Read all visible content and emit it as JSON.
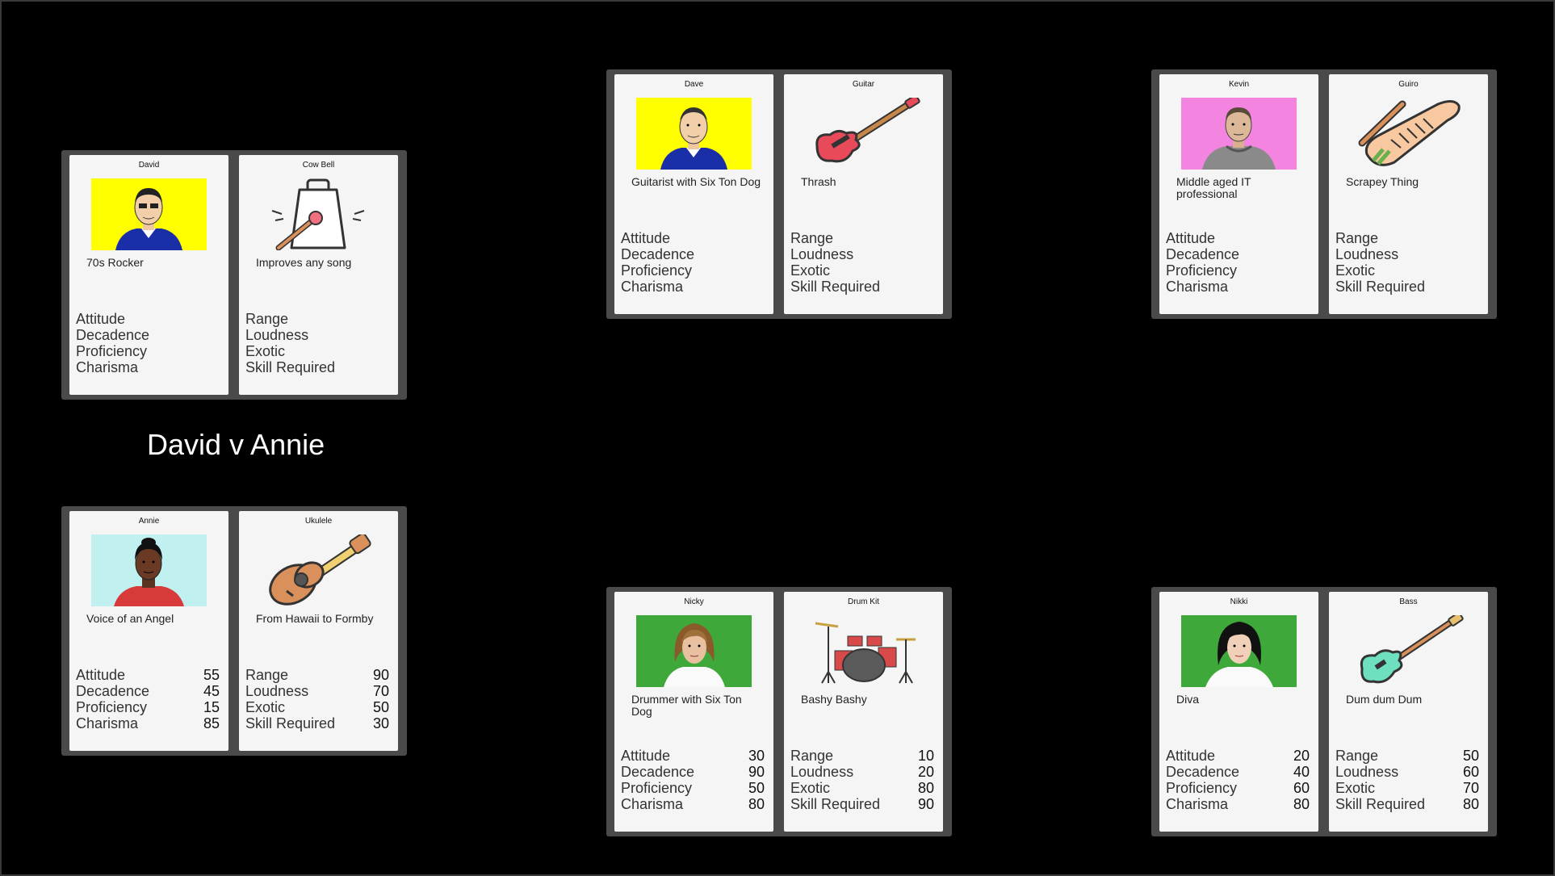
{
  "match_title": "David v Annie",
  "player_labels": [
    "Attitude",
    "Decadence",
    "Proficiency",
    "Charisma"
  ],
  "instrument_labels": [
    "Range",
    "Loudness",
    "Exotic",
    "Skill Required"
  ],
  "colors": {
    "background": "#000000",
    "pair_frame": "#4a4a4a",
    "card": "#f5f5f5",
    "portrait_yellow": "#ffff00",
    "portrait_pink": "#f384e0",
    "portrait_cyan": "#c0f0f0",
    "portrait_green": "#3ea83a"
  },
  "pairs": [
    {
      "id": "david-cowbell",
      "player": {
        "name": "David",
        "description": "70s Rocker",
        "portrait_icon": "man-blue-shirt-icon",
        "bg": "#ffff00",
        "stats": [
          "",
          "",
          "",
          ""
        ]
      },
      "instrument": {
        "name": "Cow Bell",
        "description": "Improves any song",
        "icon": "cowbell-icon",
        "stats": [
          "",
          "",
          "",
          ""
        ]
      }
    },
    {
      "id": "annie-ukulele",
      "player": {
        "name": "Annie",
        "description": "Voice of an Angel",
        "portrait_icon": "woman-red-top-icon",
        "bg": "#c0f0f0",
        "stats": [
          "55",
          "45",
          "15",
          "85"
        ]
      },
      "instrument": {
        "name": "Ukulele",
        "description": "From Hawaii to Formby",
        "icon": "ukulele-icon",
        "stats": [
          "90",
          "70",
          "50",
          "30"
        ]
      }
    },
    {
      "id": "dave-guitar",
      "player": {
        "name": "Dave",
        "description": "Guitarist with Six Ton Dog",
        "portrait_icon": "man-blue-shirt-icon",
        "bg": "#ffff00",
        "stats": [
          "",
          "",
          "",
          ""
        ]
      },
      "instrument": {
        "name": "Guitar",
        "description": "Thrash",
        "icon": "electric-guitar-icon",
        "stats": [
          "",
          "",
          "",
          ""
        ]
      }
    },
    {
      "id": "kevin-guiro",
      "player": {
        "name": "Kevin",
        "description": "Middle aged IT professional",
        "portrait_icon": "man-grey-hoodie-icon",
        "bg": "#f384e0",
        "stats": [
          "",
          "",
          "",
          ""
        ]
      },
      "instrument": {
        "name": "Guiro",
        "description": "Scrapey Thing",
        "icon": "guiro-icon",
        "stats": [
          "",
          "",
          "",
          ""
        ]
      }
    },
    {
      "id": "nicky-drumkit",
      "player": {
        "name": "Nicky",
        "description": "Drummer with Six Ton Dog",
        "portrait_icon": "long-hair-person-icon",
        "bg": "#3ea83a",
        "stats": [
          "30",
          "90",
          "50",
          "80"
        ]
      },
      "instrument": {
        "name": "Drum Kit",
        "description": "Bashy Bashy",
        "icon": "drum-kit-icon",
        "stats": [
          "10",
          "20",
          "80",
          "90"
        ]
      }
    },
    {
      "id": "nikki-bass",
      "player": {
        "name": "Nikki",
        "description": "Diva",
        "portrait_icon": "dark-hair-person-icon",
        "bg": "#3ea83a",
        "stats": [
          "20",
          "40",
          "60",
          "80"
        ]
      },
      "instrument": {
        "name": "Bass",
        "description": "Dum dum Dum",
        "icon": "bass-guitar-icon",
        "stats": [
          "50",
          "60",
          "70",
          "80"
        ]
      }
    }
  ]
}
